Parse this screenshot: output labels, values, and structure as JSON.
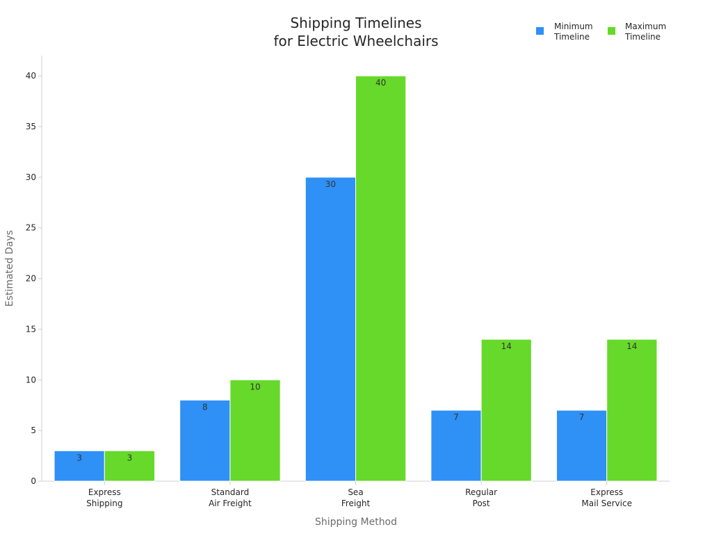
{
  "chart_data": {
    "type": "bar",
    "title": [
      "Shipping Timelines",
      "for Electric Wheelchairs"
    ],
    "xlabel": "Shipping Method",
    "ylabel": "Estimated Days",
    "categories": [
      [
        "Express",
        "Shipping"
      ],
      [
        "Standard",
        "Air Freight"
      ],
      [
        "Sea",
        "Freight"
      ],
      [
        "Regular",
        "Post"
      ],
      [
        "Express",
        "Mail Service"
      ]
    ],
    "series": [
      {
        "name": [
          "Minimum",
          "Timeline"
        ],
        "color": "#2f90f6",
        "values": [
          3,
          8,
          30,
          7,
          7
        ]
      },
      {
        "name": [
          "Maximum",
          "Timeline"
        ],
        "color": "#66d92a",
        "values": [
          3,
          10,
          40,
          14,
          14
        ]
      }
    ],
    "yticks": [
      0,
      5,
      10,
      15,
      20,
      25,
      30,
      35,
      40
    ],
    "ylim": [
      0,
      42
    ],
    "grid": false,
    "legend_position": "top-right",
    "data_labels": true
  }
}
